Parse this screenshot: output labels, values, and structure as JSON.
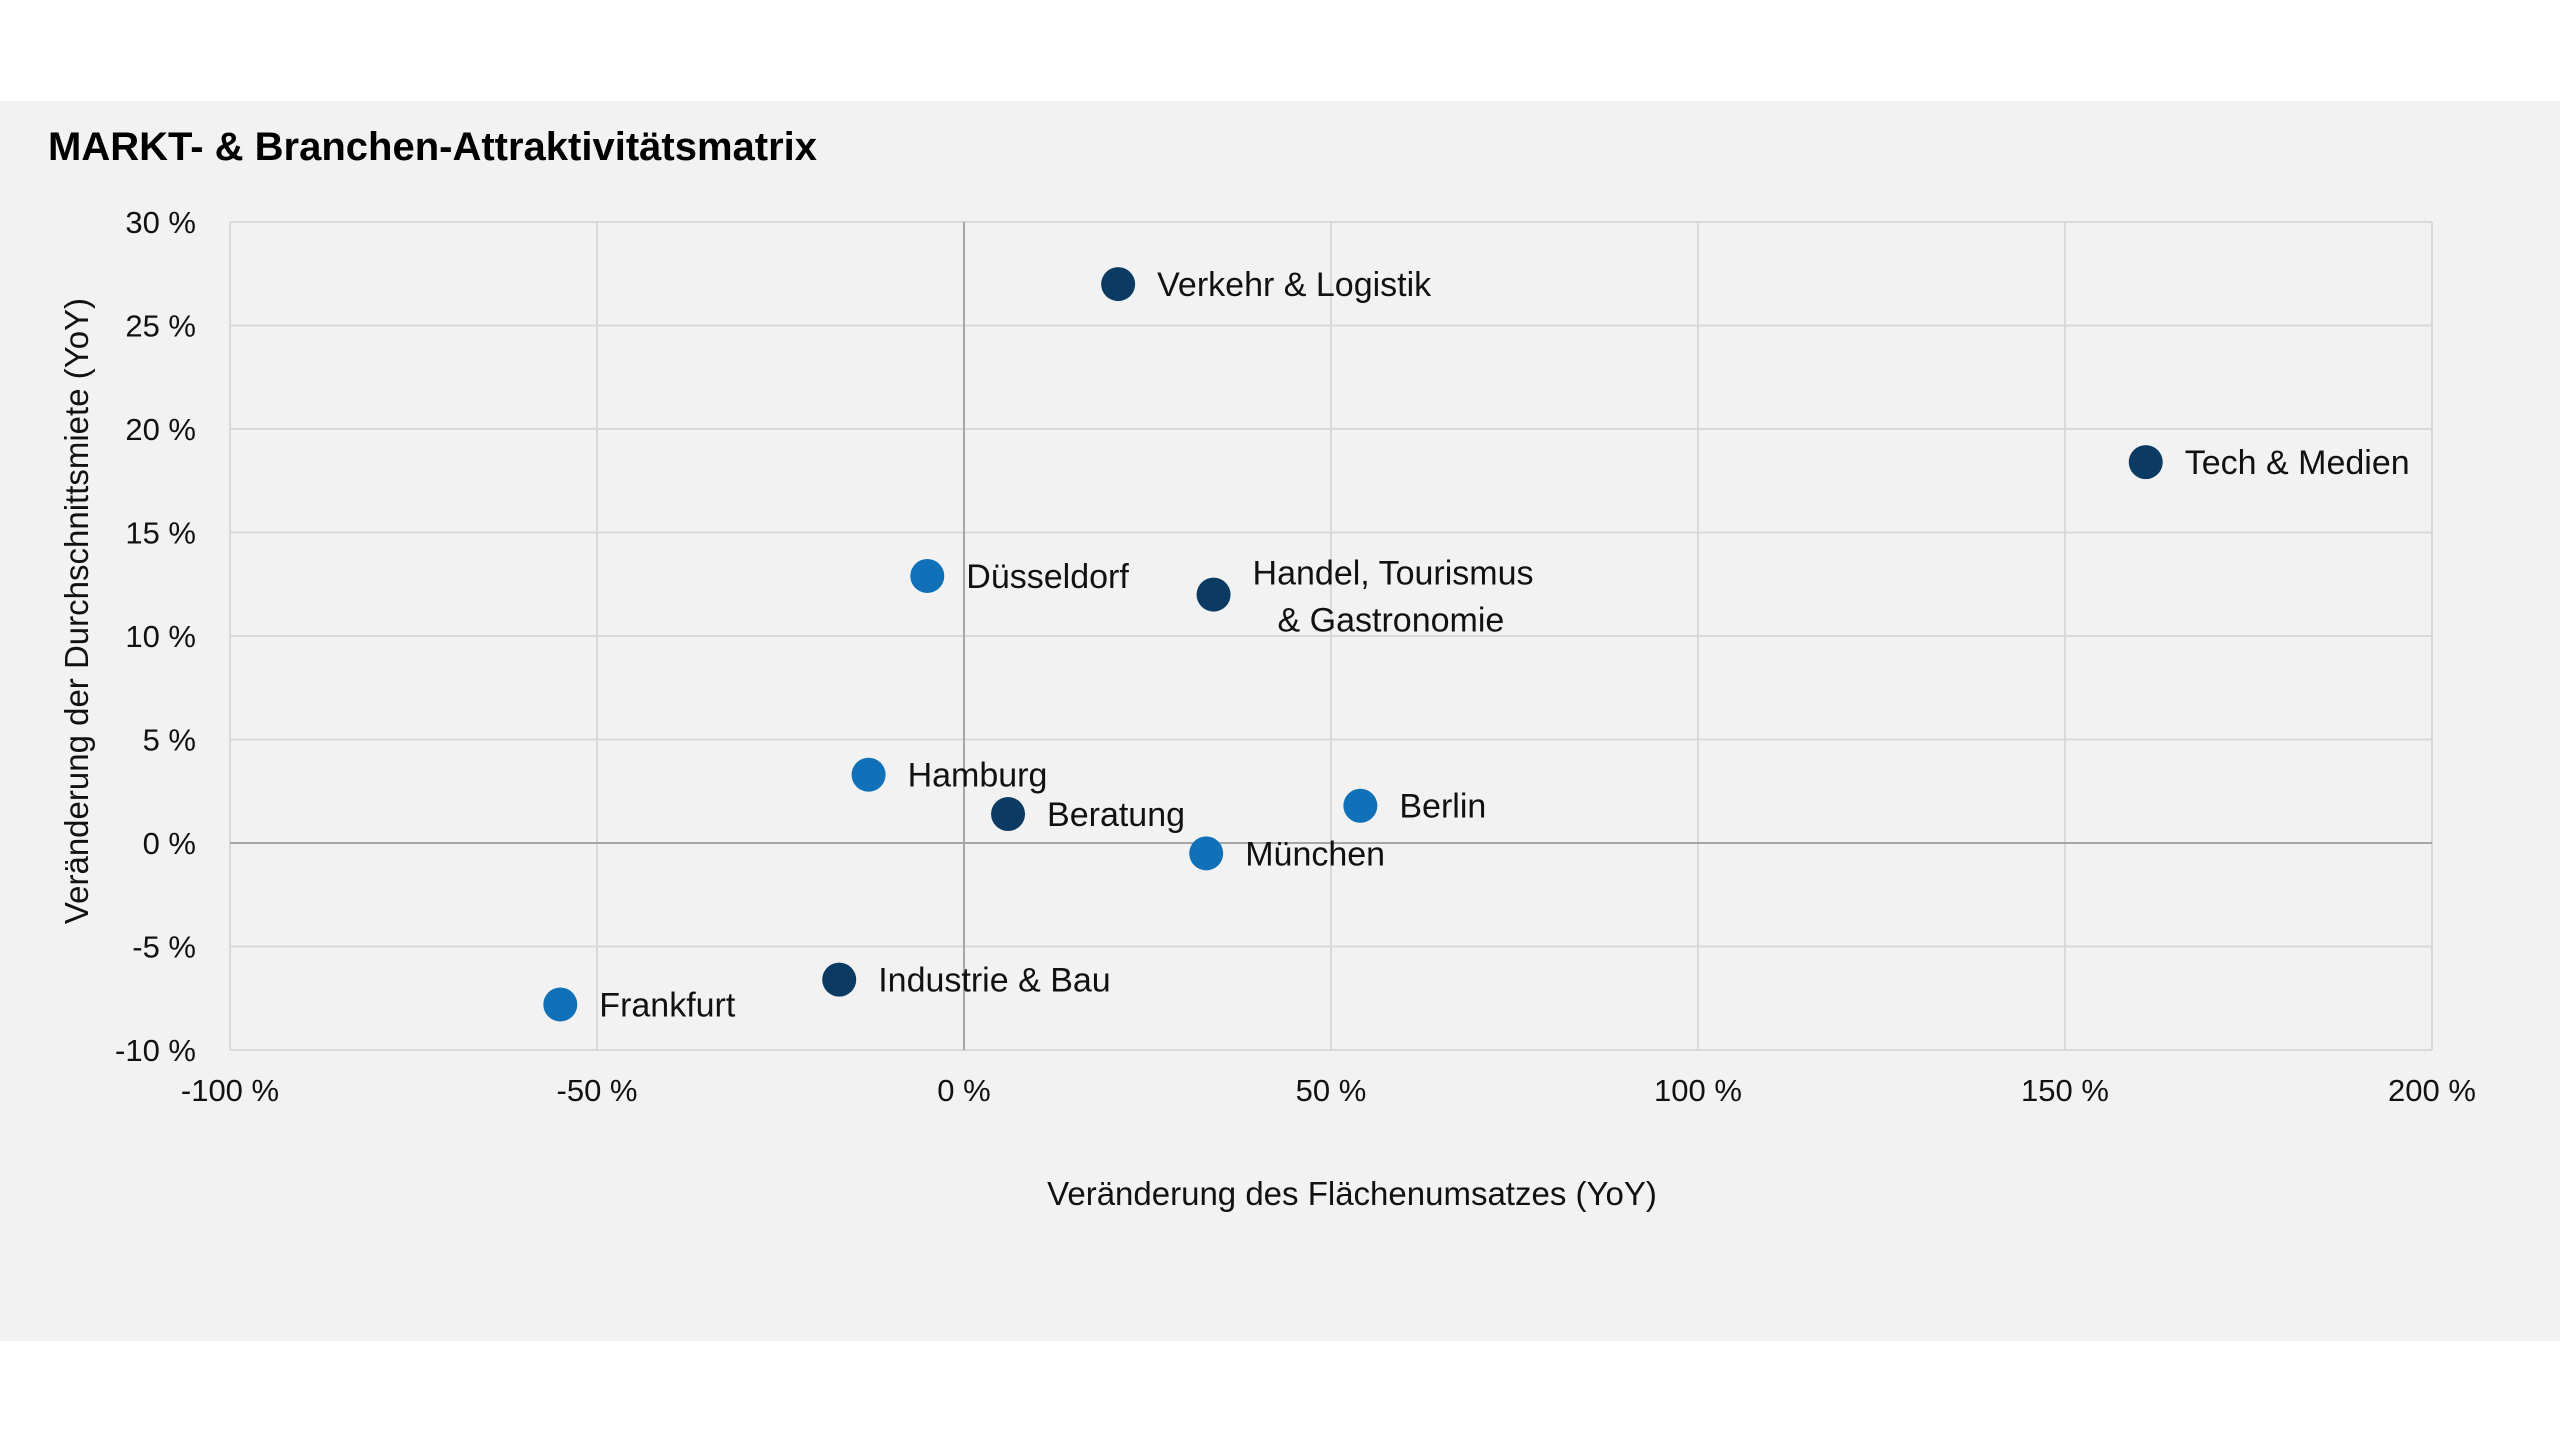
{
  "chart_data": {
    "type": "scatter",
    "title": "MARKT- & Branchen-Attraktivitätsmatrix",
    "xlabel": "Veränderung des Flächenumsatzes (YoY)",
    "ylabel": "Veränderung der Durchschnittsmiete (YoY)",
    "xlim": [
      -100,
      200
    ],
    "ylim": [
      -10,
      30
    ],
    "xticks": [
      -100,
      -50,
      0,
      50,
      100,
      150,
      200
    ],
    "yticks": [
      -10,
      -5,
      0,
      5,
      10,
      15,
      20,
      25,
      30
    ],
    "xtick_labels": [
      "-100 %",
      "-50 %",
      "0 %",
      "50 %",
      "100 %",
      "150 %",
      "200 %"
    ],
    "ytick_labels": [
      "-10 %",
      "-5 %",
      "0 %",
      "5 %",
      "10 %",
      "15 %",
      "20 %",
      "25 %",
      "30 %"
    ],
    "grid": true,
    "colors": {
      "city": "#1070b8",
      "sector": "#0b3a62"
    },
    "points": [
      {
        "label": "Verkehr & Logistik",
        "x": 21,
        "y": 27,
        "group": "sector"
      },
      {
        "label": "Tech & Medien",
        "x": 161,
        "y": 18.4,
        "group": "sector"
      },
      {
        "label": "Düsseldorf",
        "x": -5,
        "y": 12.9,
        "group": "city"
      },
      {
        "label": "Handel, Tourismus",
        "label2": "& Gastronomie",
        "x": 34,
        "y": 12,
        "group": "sector"
      },
      {
        "label": "Hamburg",
        "x": -13,
        "y": 3.3,
        "group": "city"
      },
      {
        "label": "Beratung",
        "x": 6,
        "y": 1.4,
        "group": "sector"
      },
      {
        "label": "Berlin",
        "x": 54,
        "y": 1.8,
        "group": "city"
      },
      {
        "label": "München",
        "x": 33,
        "y": -0.5,
        "group": "city"
      },
      {
        "label": "Industrie & Bau",
        "x": -17,
        "y": -6.6,
        "group": "sector"
      },
      {
        "label": "Frankfurt",
        "x": -55,
        "y": -7.8,
        "group": "city"
      }
    ]
  }
}
